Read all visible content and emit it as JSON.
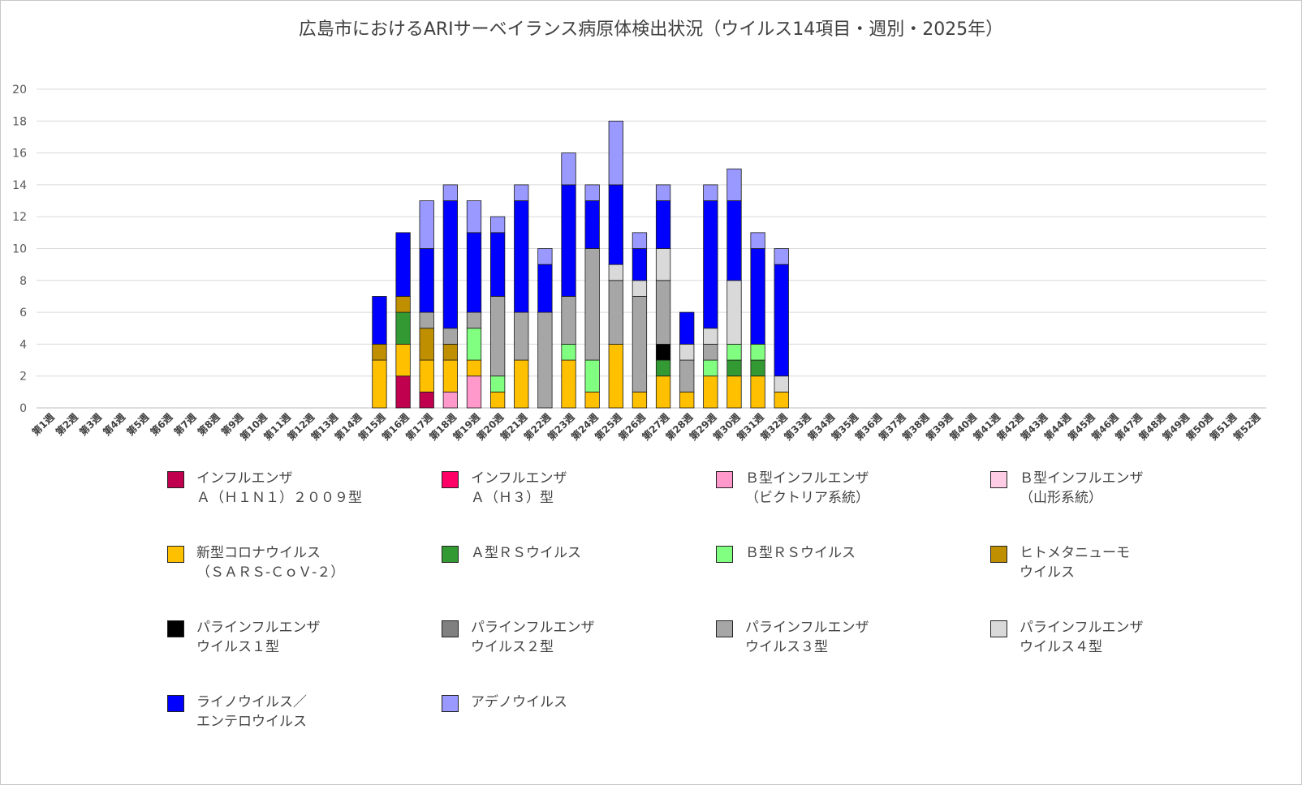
{
  "chart_data": {
    "type": "bar",
    "stacked": true,
    "title": "広島市におけるARIサーベイランス病原体検出状況（ウイルス14項目・週別・2025年）",
    "xlabel": "",
    "ylabel": "",
    "ylim": [
      0,
      20
    ],
    "yticks": [
      0,
      2,
      4,
      6,
      8,
      10,
      12,
      14,
      16,
      18,
      20
    ],
    "grid": true,
    "legend_position": "bottom",
    "categories": [
      "第1週",
      "第2週",
      "第3週",
      "第4週",
      "第5週",
      "第6週",
      "第7週",
      "第8週",
      "第9週",
      "第10週",
      "第11週",
      "第12週",
      "第13週",
      "第14週",
      "第15週",
      "第16週",
      "第17週",
      "第18週",
      "第19週",
      "第20週",
      "第21週",
      "第22週",
      "第23週",
      "第24週",
      "第25週",
      "第26週",
      "第27週",
      "第28週",
      "第29週",
      "第30週",
      "第31週",
      "第32週",
      "第33週",
      "第34週",
      "第35週",
      "第36週",
      "第37週",
      "第38週",
      "第39週",
      "第40週",
      "第41週",
      "第42週",
      "第43週",
      "第44週",
      "第45週",
      "第46週",
      "第47週",
      "第48週",
      "第49週",
      "第50週",
      "第51週",
      "第52週"
    ],
    "series": [
      {
        "name": "インフルエンザ\nＡ（Ｈ１Ｎ１）２００９型",
        "color": "#c0004f",
        "values": [
          0,
          0,
          0,
          0,
          0,
          0,
          0,
          0,
          0,
          0,
          0,
          0,
          0,
          0,
          0,
          2,
          1,
          0,
          0,
          0,
          0,
          0,
          0,
          0,
          0,
          0,
          0,
          0,
          0,
          0,
          0,
          0,
          0,
          0,
          0,
          0,
          0,
          0,
          0,
          0,
          0,
          0,
          0,
          0,
          0,
          0,
          0,
          0,
          0,
          0,
          0,
          0
        ]
      },
      {
        "name": "インフルエンザ\nＡ（Ｈ３）型",
        "color": "#ff0066",
        "values": [
          0,
          0,
          0,
          0,
          0,
          0,
          0,
          0,
          0,
          0,
          0,
          0,
          0,
          0,
          0,
          0,
          0,
          0,
          0,
          0,
          0,
          0,
          0,
          0,
          0,
          0,
          0,
          0,
          0,
          0,
          0,
          0,
          0,
          0,
          0,
          0,
          0,
          0,
          0,
          0,
          0,
          0,
          0,
          0,
          0,
          0,
          0,
          0,
          0,
          0,
          0,
          0
        ]
      },
      {
        "name": "Ｂ型インフルエンザ\n（ビクトリア系統）",
        "color": "#ff99cc",
        "values": [
          0,
          0,
          0,
          0,
          0,
          0,
          0,
          0,
          0,
          0,
          0,
          0,
          0,
          0,
          0,
          0,
          0,
          1,
          2,
          0,
          0,
          0,
          0,
          0,
          0,
          0,
          0,
          0,
          0,
          0,
          0,
          0,
          0,
          0,
          0,
          0,
          0,
          0,
          0,
          0,
          0,
          0,
          0,
          0,
          0,
          0,
          0,
          0,
          0,
          0,
          0,
          0
        ]
      },
      {
        "name": "Ｂ型インフルエンザ\n（山形系統）",
        "color": "#ffcce6",
        "values": [
          0,
          0,
          0,
          0,
          0,
          0,
          0,
          0,
          0,
          0,
          0,
          0,
          0,
          0,
          0,
          0,
          0,
          0,
          0,
          0,
          0,
          0,
          0,
          0,
          0,
          0,
          0,
          0,
          0,
          0,
          0,
          0,
          0,
          0,
          0,
          0,
          0,
          0,
          0,
          0,
          0,
          0,
          0,
          0,
          0,
          0,
          0,
          0,
          0,
          0,
          0,
          0
        ]
      },
      {
        "name": "新型コロナウイルス\n（ＳＡＲＳ-ＣｏＶ-２）",
        "color": "#ffc000",
        "values": [
          0,
          0,
          0,
          0,
          0,
          0,
          0,
          0,
          0,
          0,
          0,
          0,
          0,
          0,
          3,
          2,
          2,
          2,
          1,
          1,
          3,
          0,
          3,
          1,
          4,
          1,
          2,
          1,
          2,
          2,
          2,
          1,
          0,
          0,
          0,
          0,
          0,
          0,
          0,
          0,
          0,
          0,
          0,
          0,
          0,
          0,
          0,
          0,
          0,
          0,
          0,
          0
        ]
      },
      {
        "name": "Ａ型ＲＳウイルス",
        "color": "#339933",
        "values": [
          0,
          0,
          0,
          0,
          0,
          0,
          0,
          0,
          0,
          0,
          0,
          0,
          0,
          0,
          0,
          2,
          0,
          0,
          0,
          0,
          0,
          0,
          0,
          0,
          0,
          0,
          1,
          0,
          0,
          1,
          1,
          0,
          0,
          0,
          0,
          0,
          0,
          0,
          0,
          0,
          0,
          0,
          0,
          0,
          0,
          0,
          0,
          0,
          0,
          0,
          0,
          0
        ]
      },
      {
        "name": "Ｂ型ＲＳウイルス",
        "color": "#80ff80",
        "values": [
          0,
          0,
          0,
          0,
          0,
          0,
          0,
          0,
          0,
          0,
          0,
          0,
          0,
          0,
          0,
          0,
          0,
          0,
          2,
          1,
          0,
          0,
          1,
          2,
          0,
          0,
          0,
          0,
          1,
          1,
          1,
          0,
          0,
          0,
          0,
          0,
          0,
          0,
          0,
          0,
          0,
          0,
          0,
          0,
          0,
          0,
          0,
          0,
          0,
          0,
          0,
          0
        ]
      },
      {
        "name": "ヒトメタニューモ\nウイルス",
        "color": "#bf8f00",
        "values": [
          0,
          0,
          0,
          0,
          0,
          0,
          0,
          0,
          0,
          0,
          0,
          0,
          0,
          0,
          1,
          1,
          2,
          1,
          0,
          0,
          0,
          0,
          0,
          0,
          0,
          0,
          0,
          0,
          0,
          0,
          0,
          0,
          0,
          0,
          0,
          0,
          0,
          0,
          0,
          0,
          0,
          0,
          0,
          0,
          0,
          0,
          0,
          0,
          0,
          0,
          0,
          0
        ]
      },
      {
        "name": "パラインフルエンザ\nウイルス１型",
        "color": "#000000",
        "values": [
          0,
          0,
          0,
          0,
          0,
          0,
          0,
          0,
          0,
          0,
          0,
          0,
          0,
          0,
          0,
          0,
          0,
          0,
          0,
          0,
          0,
          0,
          0,
          0,
          0,
          0,
          1,
          0,
          0,
          0,
          0,
          0,
          0,
          0,
          0,
          0,
          0,
          0,
          0,
          0,
          0,
          0,
          0,
          0,
          0,
          0,
          0,
          0,
          0,
          0,
          0,
          0
        ]
      },
      {
        "name": "パラインフルエンザ\nウイルス２型",
        "color": "#808080",
        "values": [
          0,
          0,
          0,
          0,
          0,
          0,
          0,
          0,
          0,
          0,
          0,
          0,
          0,
          0,
          0,
          0,
          0,
          0,
          0,
          0,
          0,
          0,
          0,
          0,
          0,
          0,
          0,
          0,
          0,
          0,
          0,
          0,
          0,
          0,
          0,
          0,
          0,
          0,
          0,
          0,
          0,
          0,
          0,
          0,
          0,
          0,
          0,
          0,
          0,
          0,
          0,
          0
        ]
      },
      {
        "name": "パラインフルエンザ\nウイルス３型",
        "color": "#a6a6a6",
        "values": [
          0,
          0,
          0,
          0,
          0,
          0,
          0,
          0,
          0,
          0,
          0,
          0,
          0,
          0,
          0,
          0,
          1,
          1,
          1,
          5,
          3,
          6,
          3,
          7,
          4,
          6,
          4,
          2,
          1,
          0,
          0,
          0,
          0,
          0,
          0,
          0,
          0,
          0,
          0,
          0,
          0,
          0,
          0,
          0,
          0,
          0,
          0,
          0,
          0,
          0,
          0,
          0
        ]
      },
      {
        "name": "パラインフルエンザ\nウイルス４型",
        "color": "#d9d9d9",
        "values": [
          0,
          0,
          0,
          0,
          0,
          0,
          0,
          0,
          0,
          0,
          0,
          0,
          0,
          0,
          0,
          0,
          0,
          0,
          0,
          0,
          0,
          0,
          0,
          0,
          1,
          1,
          2,
          1,
          1,
          4,
          0,
          1,
          0,
          0,
          0,
          0,
          0,
          0,
          0,
          0,
          0,
          0,
          0,
          0,
          0,
          0,
          0,
          0,
          0,
          0,
          0,
          0
        ]
      },
      {
        "name": "ライノウイルス／\nエンテロウイルス",
        "color": "#0000ff",
        "values": [
          0,
          0,
          0,
          0,
          0,
          0,
          0,
          0,
          0,
          0,
          0,
          0,
          0,
          0,
          3,
          4,
          4,
          8,
          5,
          4,
          7,
          3,
          7,
          3,
          5,
          2,
          3,
          2,
          8,
          5,
          6,
          7,
          0,
          0,
          0,
          0,
          0,
          0,
          0,
          0,
          0,
          0,
          0,
          0,
          0,
          0,
          0,
          0,
          0,
          0,
          0,
          0
        ]
      },
      {
        "name": "アデノウイルス",
        "color": "#9999ff",
        "values": [
          0,
          0,
          0,
          0,
          0,
          0,
          0,
          0,
          0,
          0,
          0,
          0,
          0,
          0,
          0,
          0,
          3,
          1,
          2,
          1,
          1,
          1,
          2,
          1,
          4,
          1,
          1,
          0,
          1,
          2,
          1,
          1,
          0,
          0,
          0,
          0,
          0,
          0,
          0,
          0,
          0,
          0,
          0,
          0,
          0,
          0,
          0,
          0,
          0,
          0,
          0,
          0
        ]
      }
    ]
  }
}
